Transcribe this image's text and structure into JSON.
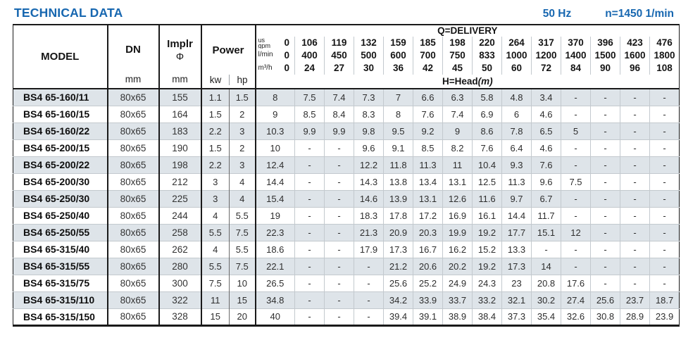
{
  "page": {
    "title": "TECHNICAL DATA",
    "frequency": "50 Hz",
    "speed": "n=1450 1/min"
  },
  "table": {
    "columns": {
      "model": "MODEL",
      "dn": "DN",
      "dn_unit": "mm",
      "impeller": "Implr",
      "impeller_symbol": "Φ",
      "impeller_unit": "mm",
      "power": "Power",
      "power_unit_kw": "kw",
      "power_unit_hp": "hp"
    },
    "delivery": {
      "title": "Q=DELIVERY",
      "head_label": "H=Head",
      "head_label_unit": "(m)",
      "unit_rows": [
        {
          "label_lines": [
            "us",
            "gpm"
          ],
          "values": [
            "0",
            "106",
            "119",
            "132",
            "159",
            "185",
            "198",
            "220",
            "264",
            "317",
            "370",
            "396",
            "423",
            "476"
          ]
        },
        {
          "label_lines": [
            "l/min"
          ],
          "values": [
            "0",
            "400",
            "450",
            "500",
            "600",
            "700",
            "750",
            "833",
            "1000",
            "1200",
            "1400",
            "1500",
            "1600",
            "1800"
          ]
        },
        {
          "label_lines": [
            "m³/h"
          ],
          "values": [
            "0",
            "24",
            "27",
            "30",
            "36",
            "42",
            "45",
            "50",
            "60",
            "72",
            "84",
            "90",
            "96",
            "108"
          ]
        }
      ]
    },
    "rows": [
      {
        "model": "BS4 65-160/11",
        "dn": "80x65",
        "impeller": "155",
        "kw": "1.1",
        "hp": "1.5",
        "head": [
          "8",
          "7.5",
          "7.4",
          "7.3",
          "7",
          "6.6",
          "6.3",
          "5.8",
          "4.8",
          "3.4",
          "-",
          "-",
          "-",
          "-"
        ]
      },
      {
        "model": "BS4 65-160/15",
        "dn": "80x65",
        "impeller": "164",
        "kw": "1.5",
        "hp": "2",
        "head": [
          "9",
          "8.5",
          "8.4",
          "8.3",
          "8",
          "7.6",
          "7.4",
          "6.9",
          "6",
          "4.6",
          "-",
          "-",
          "-",
          "-"
        ]
      },
      {
        "model": "BS4 65-160/22",
        "dn": "80x65",
        "impeller": "183",
        "kw": "2.2",
        "hp": "3",
        "head": [
          "10.3",
          "9.9",
          "9.9",
          "9.8",
          "9.5",
          "9.2",
          "9",
          "8.6",
          "7.8",
          "6.5",
          "5",
          "-",
          "-",
          "-"
        ]
      },
      {
        "model": "BS4 65-200/15",
        "dn": "80x65",
        "impeller": "190",
        "kw": "1.5",
        "hp": "2",
        "head": [
          "10",
          "-",
          "-",
          "9.6",
          "9.1",
          "8.5",
          "8.2",
          "7.6",
          "6.4",
          "4.6",
          "-",
          "-",
          "-",
          "-"
        ]
      },
      {
        "model": "BS4 65-200/22",
        "dn": "80x65",
        "impeller": "198",
        "kw": "2.2",
        "hp": "3",
        "head": [
          "12.4",
          "-",
          "-",
          "12.2",
          "11.8",
          "11.3",
          "11",
          "10.4",
          "9.3",
          "7.6",
          "-",
          "-",
          "-",
          "-"
        ]
      },
      {
        "model": "BS4 65-200/30",
        "dn": "80x65",
        "impeller": "212",
        "kw": "3",
        "hp": "4",
        "head": [
          "14.4",
          "-",
          "-",
          "14.3",
          "13.8",
          "13.4",
          "13.1",
          "12.5",
          "11.3",
          "9.6",
          "7.5",
          "-",
          "-",
          "-"
        ]
      },
      {
        "model": "BS4 65-250/30",
        "dn": "80x65",
        "impeller": "225",
        "kw": "3",
        "hp": "4",
        "head": [
          "15.4",
          "-",
          "-",
          "14.6",
          "13.9",
          "13.1",
          "12.6",
          "11.6",
          "9.7",
          "6.7",
          "-",
          "-",
          "-",
          "-"
        ]
      },
      {
        "model": "BS4 65-250/40",
        "dn": "80x65",
        "impeller": "244",
        "kw": "4",
        "hp": "5.5",
        "head": [
          "19",
          "-",
          "-",
          "18.3",
          "17.8",
          "17.2",
          "16.9",
          "16.1",
          "14.4",
          "11.7",
          "-",
          "-",
          "-",
          "-"
        ]
      },
      {
        "model": "BS4 65-250/55",
        "dn": "80x65",
        "impeller": "258",
        "kw": "5.5",
        "hp": "7.5",
        "head": [
          "22.3",
          "-",
          "-",
          "21.3",
          "20.9",
          "20.3",
          "19.9",
          "19.2",
          "17.7",
          "15.1",
          "12",
          "-",
          "-",
          "-"
        ]
      },
      {
        "model": "BS4 65-315/40",
        "dn": "80x65",
        "impeller": "262",
        "kw": "4",
        "hp": "5.5",
        "head": [
          "18.6",
          "-",
          "-",
          "17.9",
          "17.3",
          "16.7",
          "16.2",
          "15.2",
          "13.3",
          "-",
          "-",
          "-",
          "-",
          "-"
        ]
      },
      {
        "model": "BS4 65-315/55",
        "dn": "80x65",
        "impeller": "280",
        "kw": "5.5",
        "hp": "7.5",
        "head": [
          "22.1",
          "-",
          "-",
          "-",
          "21.2",
          "20.6",
          "20.2",
          "19.2",
          "17.3",
          "14",
          "-",
          "-",
          "-",
          "-"
        ]
      },
      {
        "model": "BS4 65-315/75",
        "dn": "80x65",
        "impeller": "300",
        "kw": "7.5",
        "hp": "10",
        "head": [
          "26.5",
          "-",
          "-",
          "-",
          "25.6",
          "25.2",
          "24.9",
          "24.3",
          "23",
          "20.8",
          "17.6",
          "-",
          "-",
          "-"
        ]
      },
      {
        "model": "BS4 65-315/110",
        "dn": "80x65",
        "impeller": "322",
        "kw": "11",
        "hp": "15",
        "head": [
          "34.8",
          "-",
          "-",
          "-",
          "34.2",
          "33.9",
          "33.7",
          "33.2",
          "32.1",
          "30.2",
          "27.4",
          "25.6",
          "23.7",
          "18.7"
        ]
      },
      {
        "model": "BS4 65-315/150",
        "dn": "80x65",
        "impeller": "328",
        "kw": "15",
        "hp": "20",
        "head": [
          "40",
          "-",
          "-",
          "-",
          "39.4",
          "39.1",
          "38.9",
          "38.4",
          "37.3",
          "35.4",
          "32.6",
          "30.8",
          "28.9",
          "23.9"
        ]
      }
    ]
  }
}
